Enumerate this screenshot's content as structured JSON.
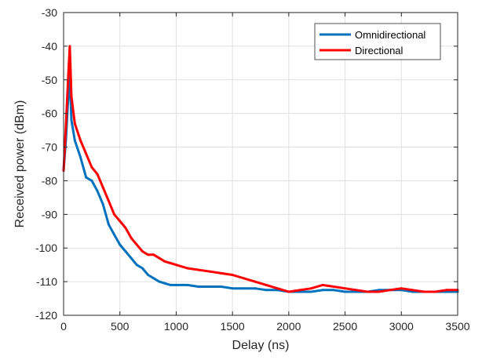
{
  "chart_data": {
    "type": "line",
    "title": "",
    "xlabel": "Delay (ns)",
    "ylabel": "Received power (dBm)",
    "xlim": [
      0,
      3500
    ],
    "ylim": [
      -120,
      -30
    ],
    "xticks": [
      0,
      500,
      1000,
      1500,
      2000,
      2500,
      3000,
      3500
    ],
    "yticks": [
      -120,
      -110,
      -100,
      -90,
      -80,
      -70,
      -60,
      -50,
      -40,
      -30
    ],
    "xtick_labels": [
      "0",
      "500",
      "1000",
      "1500",
      "2000",
      "2500",
      "3000",
      "3500"
    ],
    "ytick_labels": [
      "-120",
      "-110",
      "-100",
      "-90",
      "-80",
      "-70",
      "-60",
      "-50",
      "-40",
      "-30"
    ],
    "grid": true,
    "legend_position": "top-right",
    "series": [
      {
        "name": "Omnidirectional",
        "color": "#0072BD",
        "x": [
          0,
          20,
          40,
          55,
          70,
          100,
          150,
          200,
          250,
          300,
          350,
          400,
          450,
          500,
          550,
          600,
          650,
          700,
          750,
          800,
          850,
          900,
          950,
          1000,
          1100,
          1200,
          1300,
          1400,
          1500,
          1600,
          1700,
          1800,
          1900,
          2000,
          2100,
          2200,
          2300,
          2400,
          2500,
          2600,
          2700,
          2800,
          2900,
          3000,
          3100,
          3200,
          3300,
          3400,
          3500
        ],
        "y": [
          -77,
          -68,
          -56,
          -49,
          -62,
          -68,
          -73,
          -79,
          -80,
          -83,
          -87,
          -93,
          -96,
          -99,
          -101,
          -103,
          -105,
          -106,
          -108,
          -109,
          -110,
          -110.5,
          -111,
          -111,
          -111,
          -111.5,
          -111.5,
          -111.5,
          -112,
          -112,
          -112,
          -112.5,
          -112.5,
          -113,
          -113,
          -113,
          -112.5,
          -112.5,
          -113,
          -113,
          -113,
          -112.5,
          -112.5,
          -112.5,
          -113,
          -113,
          -113,
          -113,
          -113
        ]
      },
      {
        "name": "Directional",
        "color": "#FF0000",
        "x": [
          0,
          20,
          40,
          55,
          70,
          100,
          150,
          200,
          250,
          300,
          350,
          400,
          450,
          500,
          550,
          600,
          650,
          700,
          750,
          800,
          850,
          900,
          950,
          1000,
          1100,
          1200,
          1300,
          1400,
          1500,
          1600,
          1700,
          1800,
          1900,
          2000,
          2100,
          2200,
          2300,
          2400,
          2500,
          2600,
          2700,
          2800,
          2900,
          3000,
          3100,
          3200,
          3300,
          3400,
          3500
        ],
        "y": [
          -77,
          -64,
          -50,
          -40,
          -55,
          -63,
          -68,
          -72,
          -76,
          -78,
          -82,
          -86,
          -90,
          -92,
          -94,
          -97,
          -99,
          -101,
          -102,
          -102,
          -103,
          -104,
          -104.5,
          -105,
          -106,
          -106.5,
          -107,
          -107.5,
          -108,
          -109,
          -110,
          -111,
          -112,
          -113,
          -112.5,
          -112,
          -111,
          -111.5,
          -112,
          -112.5,
          -113,
          -113,
          -112.5,
          -112,
          -112.5,
          -113,
          -113,
          -112.5,
          -112.5
        ]
      }
    ]
  }
}
